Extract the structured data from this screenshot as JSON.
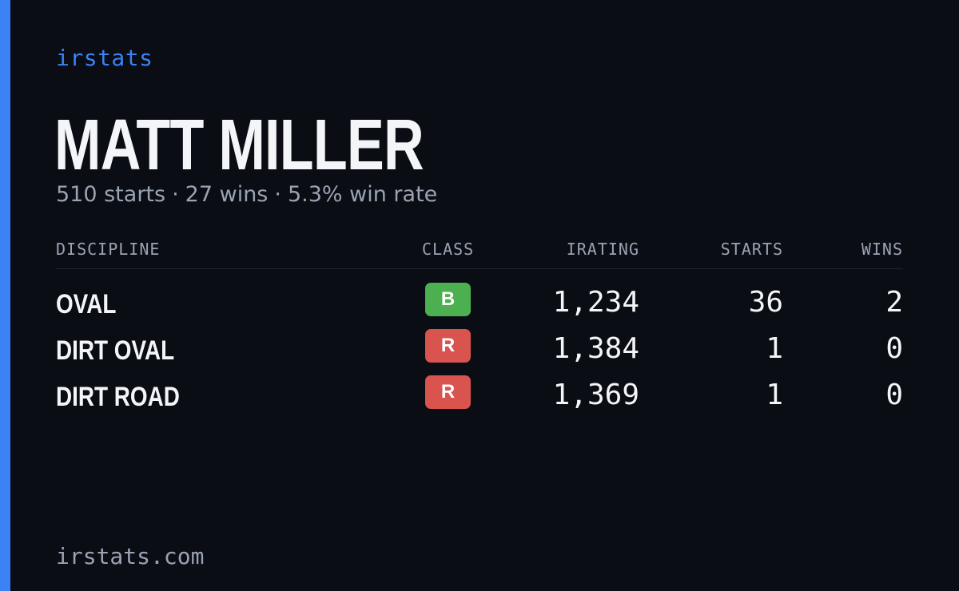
{
  "brand": "irstats",
  "driver": {
    "name": "MATT MILLER",
    "starts": "510 starts",
    "wins": "27 wins",
    "win_rate": "5.3% win rate",
    "separator": "·"
  },
  "table": {
    "headers": {
      "discipline": "DISCIPLINE",
      "class": "CLASS",
      "irating": "IRATING",
      "starts": "STARTS",
      "wins": "WINS"
    },
    "rows": [
      {
        "discipline": "OVAL",
        "class": "B",
        "class_color": "#4caf50",
        "irating": "1,234",
        "starts": "36",
        "wins": "2"
      },
      {
        "discipline": "DIRT OVAL",
        "class": "R",
        "class_color": "#d9534f",
        "irating": "1,384",
        "starts": "1",
        "wins": "0"
      },
      {
        "discipline": "DIRT ROAD",
        "class": "R",
        "class_color": "#d9534f",
        "irating": "1,369",
        "starts": "1",
        "wins": "0"
      }
    ]
  },
  "footer": {
    "url": "irstats.com"
  },
  "colors": {
    "accent": "#3b82f6",
    "background": "#0a0d14",
    "class_b": "#4caf50",
    "class_r": "#d9534f"
  }
}
